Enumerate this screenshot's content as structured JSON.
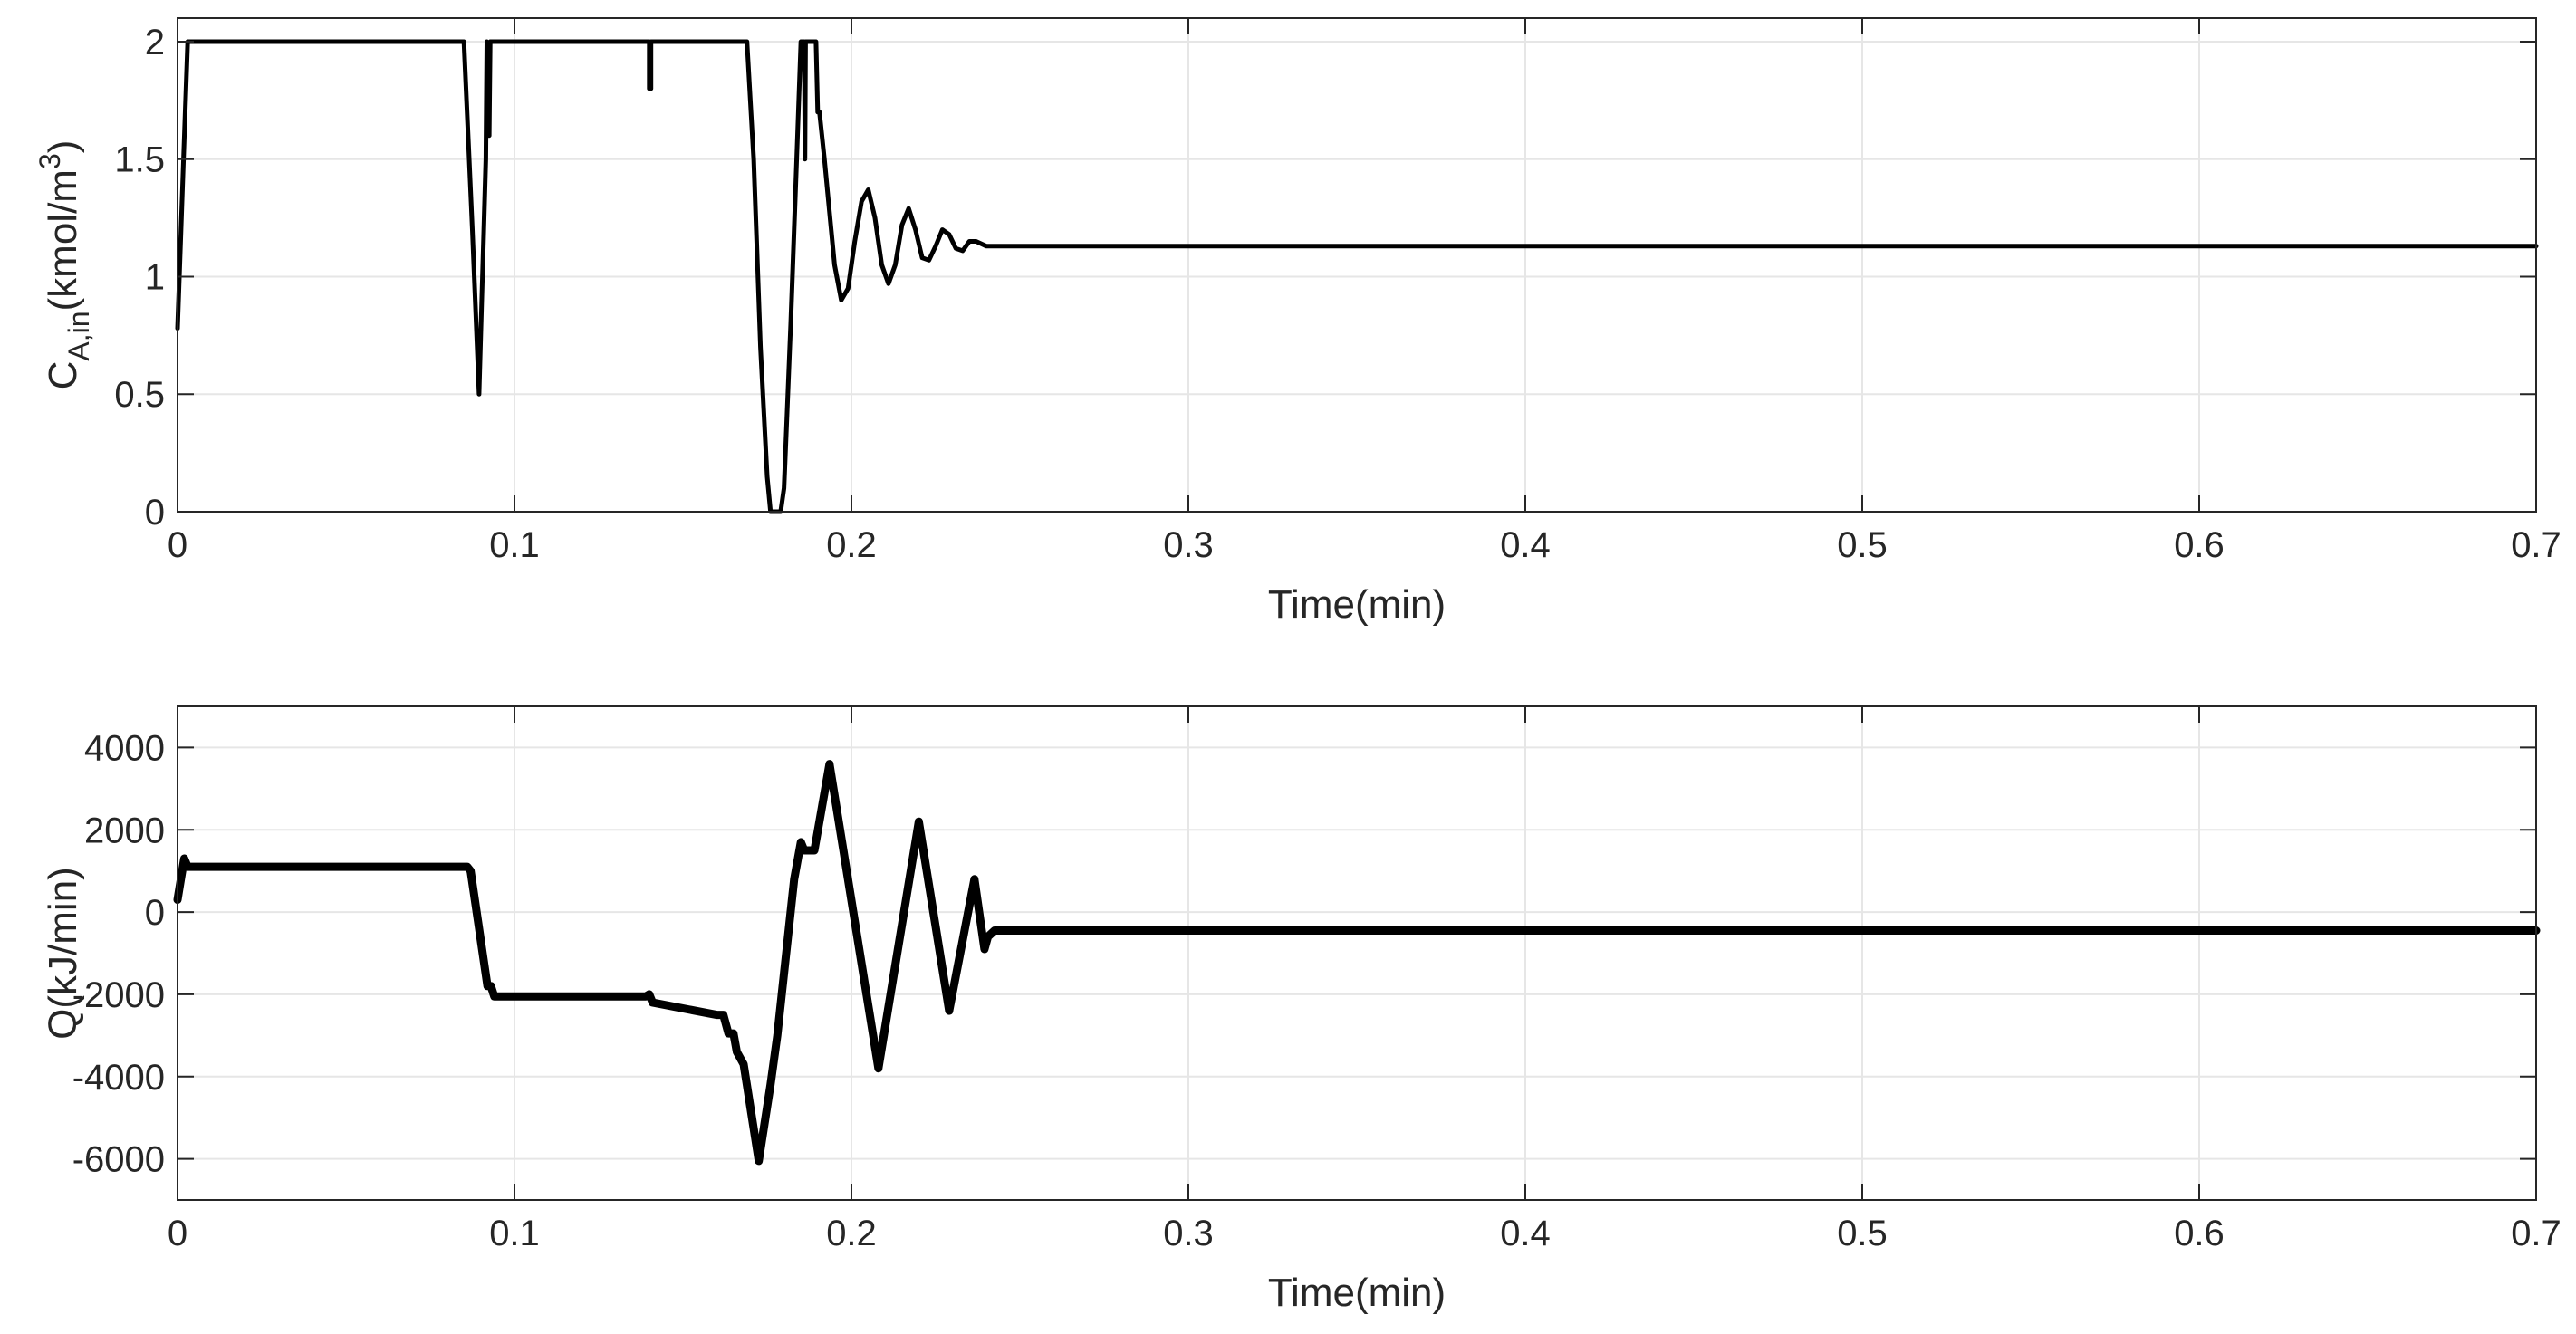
{
  "chart_data": [
    {
      "type": "line",
      "xlabel": "Time(min)",
      "ylabel": {
        "base": "C",
        "sub": "A,in",
        "unit_pre": "(kmol/m",
        "sup": "3",
        "unit_post": ")"
      },
      "xlim": [
        0,
        0.7
      ],
      "ylim": [
        0,
        2.1
      ],
      "xticks": [
        0,
        0.1,
        0.2,
        0.3,
        0.4,
        0.5,
        0.6,
        0.7
      ],
      "xtick_labels": [
        "0",
        "0.1",
        "0.2",
        "0.3",
        "0.4",
        "0.5",
        "0.6",
        "0.7"
      ],
      "yticks": [
        0,
        0.5,
        1,
        1.5,
        2
      ],
      "ytick_labels": [
        "0",
        "0.5",
        "1",
        "1.5",
        "2"
      ],
      "grid": true,
      "series": [
        {
          "color": "#000000",
          "x": [
            0,
            0.003,
            0.085,
            0.0875,
            0.0895,
            0.0915,
            0.0918,
            0.0925,
            0.0928,
            0.093,
            0.14,
            0.14,
            0.1405,
            0.1405,
            0.169,
            0.171,
            0.173,
            0.175,
            0.176,
            0.177,
            0.178,
            0.179,
            0.18,
            0.182,
            0.184,
            0.185,
            0.186,
            0.1862,
            0.1864,
            0.188,
            0.189,
            0.1895,
            0.19,
            0.1905,
            0.192,
            0.195,
            0.197,
            0.199,
            0.201,
            0.203,
            0.205,
            0.207,
            0.209,
            0.211,
            0.213,
            0.215,
            0.217,
            0.219,
            0.221,
            0.223,
            0.225,
            0.227,
            0.229,
            0.231,
            0.233,
            0.235,
            0.237,
            0.24,
            0.7
          ],
          "y": [
            0.78,
            2.0,
            2.0,
            1.2,
            0.5,
            1.5,
            2.0,
            1.6,
            2.0,
            2.0,
            2.0,
            1.8,
            1.8,
            2.0,
            2.0,
            1.5,
            0.7,
            0.15,
            0.0,
            0.0,
            0.0,
            0.0,
            0.1,
            0.8,
            1.6,
            2.0,
            2.0,
            1.5,
            2.0,
            2.0,
            2.0,
            2.0,
            1.7,
            1.7,
            1.5,
            1.05,
            0.9,
            0.95,
            1.15,
            1.32,
            1.37,
            1.25,
            1.05,
            0.97,
            1.05,
            1.22,
            1.29,
            1.2,
            1.08,
            1.07,
            1.13,
            1.2,
            1.18,
            1.12,
            1.11,
            1.15,
            1.15,
            1.13,
            1.13
          ]
        }
      ]
    },
    {
      "type": "line",
      "xlabel": "Time(min)",
      "ylabel": "Q(kJ/min)",
      "xlim": [
        0,
        0.7
      ],
      "ylim": [
        -7000,
        5000
      ],
      "xticks": [
        0,
        0.1,
        0.2,
        0.3,
        0.4,
        0.5,
        0.6,
        0.7
      ],
      "xtick_labels": [
        "0",
        "0.1",
        "0.2",
        "0.3",
        "0.4",
        "0.5",
        "0.6",
        "0.7"
      ],
      "yticks": [
        -6000,
        -4000,
        -2000,
        0,
        2000,
        4000
      ],
      "ytick_labels": [
        "-6000",
        "-4000",
        "-2000",
        "0",
        "2000",
        "4000"
      ],
      "grid": true,
      "series": [
        {
          "color": "#000000",
          "x": [
            0,
            0.002,
            0.003,
            0.086,
            0.087,
            0.092,
            0.093,
            0.094,
            0.139,
            0.14,
            0.141,
            0.16,
            0.161,
            0.162,
            0.1635,
            0.165,
            0.166,
            0.168,
            0.1725,
            0.176,
            0.178,
            0.183,
            0.185,
            0.186,
            0.189,
            0.1935,
            0.208,
            0.22,
            0.229,
            0.2365,
            0.2395,
            0.2405,
            0.2425,
            0.7
          ],
          "y": [
            300,
            1300,
            1100,
            1100,
            1000,
            -1800,
            -1800,
            -2050,
            -2050,
            -2000,
            -2200,
            -2500,
            -2500,
            -2500,
            -2950,
            -2950,
            -3400,
            -3700,
            -6050,
            -4200,
            -3000,
            800,
            1700,
            1500,
            1500,
            3600,
            -3800,
            2200,
            -2400,
            800,
            -900,
            -600,
            -450,
            -450
          ]
        }
      ]
    }
  ]
}
